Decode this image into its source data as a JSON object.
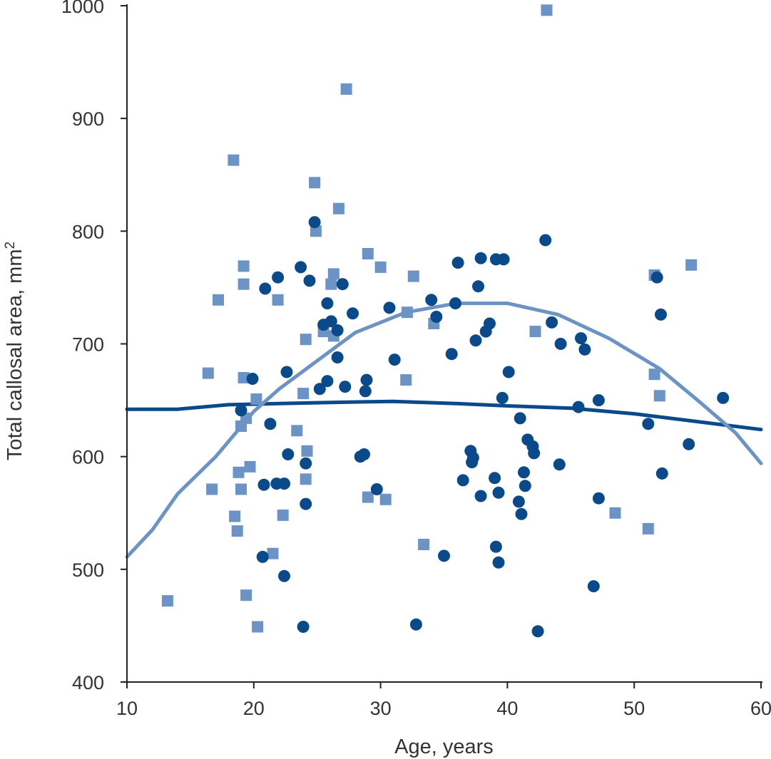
{
  "chart_data": {
    "type": "scatter",
    "xlabel": "Age, years",
    "ylabel": "Total callosal area, mm",
    "ylabel_sup": "2",
    "xlim": [
      10,
      60
    ],
    "ylim": [
      400,
      1000
    ],
    "xticks": [
      10,
      20,
      30,
      40,
      50,
      60
    ],
    "yticks": [
      400,
      500,
      600,
      700,
      800,
      900,
      1000
    ],
    "grid": false,
    "legend": "none",
    "series": [
      {
        "marker": "circle",
        "color": "#0a4a8a",
        "points": [
          [
            19,
            641
          ],
          [
            19.9,
            669
          ],
          [
            20.8,
            575
          ],
          [
            20.7,
            511
          ],
          [
            20.9,
            749
          ],
          [
            21.3,
            629
          ],
          [
            21.8,
            576
          ],
          [
            21.9,
            759
          ],
          [
            22.4,
            576
          ],
          [
            22.4,
            494
          ],
          [
            22.6,
            675
          ],
          [
            22.7,
            602
          ],
          [
            23.7,
            768
          ],
          [
            23.9,
            449
          ],
          [
            24.1,
            594
          ],
          [
            24.1,
            558
          ],
          [
            24.4,
            756
          ],
          [
            24.8,
            808
          ],
          [
            25.2,
            660
          ],
          [
            25.5,
            717
          ],
          [
            25.8,
            667
          ],
          [
            25.8,
            736
          ],
          [
            26.1,
            720
          ],
          [
            26.6,
            712
          ],
          [
            26.6,
            688
          ],
          [
            27,
            753
          ],
          [
            27.2,
            662
          ],
          [
            27.8,
            727
          ],
          [
            28.4,
            600
          ],
          [
            28.7,
            602
          ],
          [
            28.8,
            658
          ],
          [
            28.9,
            668
          ],
          [
            29.7,
            571
          ],
          [
            30.7,
            732
          ],
          [
            31.1,
            686
          ],
          [
            32.8,
            451
          ],
          [
            34,
            739
          ],
          [
            34.4,
            724
          ],
          [
            35,
            512
          ],
          [
            35.6,
            691
          ],
          [
            35.9,
            736
          ],
          [
            36.1,
            772
          ],
          [
            36.5,
            579
          ],
          [
            37.1,
            605
          ],
          [
            37.2,
            595
          ],
          [
            37.3,
            599
          ],
          [
            37.5,
            703
          ],
          [
            37.7,
            751
          ],
          [
            37.9,
            776
          ],
          [
            37.9,
            565
          ],
          [
            38.3,
            711
          ],
          [
            38.6,
            718
          ],
          [
            39,
            581
          ],
          [
            39.1,
            775
          ],
          [
            39.1,
            520
          ],
          [
            39.3,
            568
          ],
          [
            39.3,
            506
          ],
          [
            39.6,
            652
          ],
          [
            39.7,
            775
          ],
          [
            40.1,
            675
          ],
          [
            40.9,
            560
          ],
          [
            41,
            634
          ],
          [
            41.1,
            549
          ],
          [
            41.3,
            586
          ],
          [
            41.4,
            574
          ],
          [
            41.6,
            615
          ],
          [
            42,
            609
          ],
          [
            42.1,
            603
          ],
          [
            42.4,
            445
          ],
          [
            43,
            792
          ],
          [
            43.5,
            719
          ],
          [
            44.1,
            593
          ],
          [
            44.2,
            700
          ],
          [
            45.6,
            644
          ],
          [
            45.8,
            705
          ],
          [
            46.1,
            695
          ],
          [
            46.8,
            485
          ],
          [
            47.2,
            650
          ],
          [
            47.2,
            563
          ],
          [
            51.1,
            629
          ],
          [
            51.8,
            759
          ],
          [
            52.1,
            726
          ],
          [
            52.2,
            585
          ],
          [
            54.3,
            611
          ],
          [
            57,
            652
          ]
        ]
      },
      {
        "marker": "square",
        "color": "#6b93c6",
        "points": [
          [
            13.2,
            472
          ],
          [
            16.4,
            674
          ],
          [
            16.7,
            571
          ],
          [
            17.2,
            739
          ],
          [
            18.4,
            863
          ],
          [
            18.5,
            547
          ],
          [
            18.7,
            534
          ],
          [
            18.8,
            586
          ],
          [
            19,
            571
          ],
          [
            19,
            627
          ],
          [
            19.2,
            753
          ],
          [
            19.2,
            769
          ],
          [
            19.2,
            670
          ],
          [
            19.4,
            634
          ],
          [
            19.4,
            477
          ],
          [
            19.7,
            591
          ],
          [
            20.2,
            651
          ],
          [
            20.3,
            449
          ],
          [
            21.5,
            514
          ],
          [
            21.9,
            739
          ],
          [
            22.3,
            548
          ],
          [
            23.4,
            623
          ],
          [
            23.9,
            656
          ],
          [
            24.1,
            704
          ],
          [
            24.1,
            580
          ],
          [
            24.2,
            605
          ],
          [
            24.8,
            843
          ],
          [
            24.9,
            800
          ],
          [
            25.5,
            711
          ],
          [
            26.1,
            753
          ],
          [
            26.3,
            762
          ],
          [
            26.3,
            707
          ],
          [
            26.7,
            820
          ],
          [
            27.3,
            926
          ],
          [
            29,
            780
          ],
          [
            29,
            564
          ],
          [
            30,
            768
          ],
          [
            30.4,
            562
          ],
          [
            32,
            668
          ],
          [
            32.1,
            728
          ],
          [
            32.6,
            760
          ],
          [
            33.4,
            522
          ],
          [
            34.2,
            718
          ],
          [
            42.2,
            711
          ],
          [
            43.1,
            996
          ],
          [
            48.5,
            550
          ],
          [
            51.1,
            536
          ],
          [
            51.6,
            761
          ],
          [
            51.6,
            673
          ],
          [
            52,
            654
          ],
          [
            54.5,
            770
          ]
        ]
      }
    ],
    "fits": [
      {
        "color": "#0a4a8a",
        "points": [
          [
            10,
            642
          ],
          [
            14,
            642
          ],
          [
            18,
            646
          ],
          [
            22,
            647
          ],
          [
            26,
            648
          ],
          [
            31,
            649
          ],
          [
            36,
            647
          ],
          [
            40,
            645
          ],
          [
            45,
            643
          ],
          [
            50,
            638
          ],
          [
            55,
            631
          ],
          [
            60,
            624
          ]
        ]
      },
      {
        "color": "#6b93c6",
        "points": [
          [
            10,
            511
          ],
          [
            12,
            535
          ],
          [
            14,
            567
          ],
          [
            17,
            600
          ],
          [
            20,
            640
          ],
          [
            22,
            660
          ],
          [
            25,
            685
          ],
          [
            28,
            710
          ],
          [
            32,
            728
          ],
          [
            36,
            736
          ],
          [
            40,
            736
          ],
          [
            44,
            726
          ],
          [
            48,
            705
          ],
          [
            52,
            678
          ],
          [
            55,
            650
          ],
          [
            58,
            621
          ],
          [
            60,
            594
          ]
        ]
      }
    ]
  }
}
